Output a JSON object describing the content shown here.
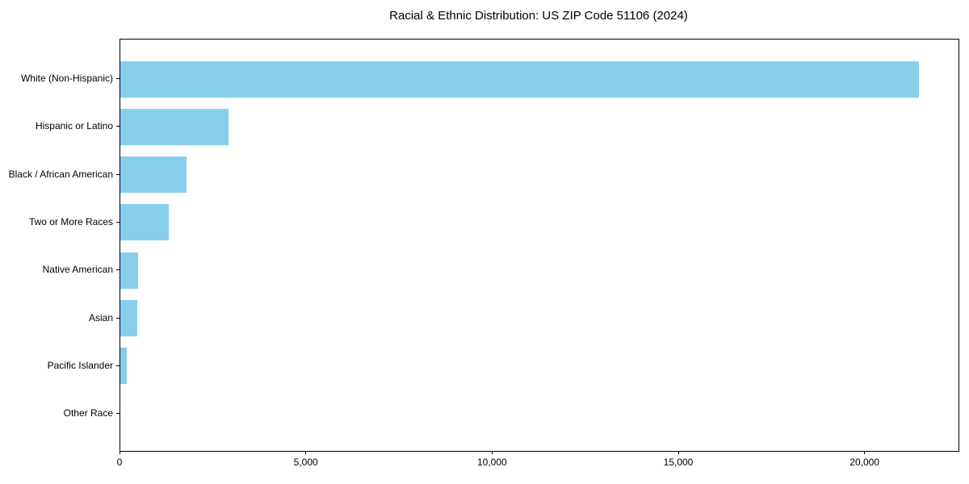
{
  "title": "Racial & Ethnic Distribution: US ZIP Code 51106 (2024)",
  "colors": {
    "bar": "#87CEEB",
    "axis": "#000000",
    "background": "#FFFFFF",
    "text": "#000000"
  },
  "chart_data": {
    "type": "bar",
    "orientation": "horizontal",
    "title": "Racial & Ethnic Distribution: US ZIP Code 51106 (2024)",
    "categories": [
      "White (Non-Hispanic)",
      "Hispanic or Latino",
      "Black / African American",
      "Two or More Races",
      "Native American",
      "Asian",
      "Pacific Islander",
      "Other Race"
    ],
    "values": [
      21430,
      2910,
      1780,
      1300,
      480,
      455,
      175,
      0
    ],
    "xlabel": "",
    "ylabel": "",
    "xlim": [
      0,
      22500
    ],
    "xticks": [
      0,
      5000,
      10000,
      15000,
      20000
    ],
    "xtick_labels": [
      "0",
      "5,000",
      "10,000",
      "15,000",
      "20,000"
    ],
    "grid": false,
    "legend": null,
    "bar_color": "#87CEEB",
    "value_order": "descending, largest bar at top"
  }
}
